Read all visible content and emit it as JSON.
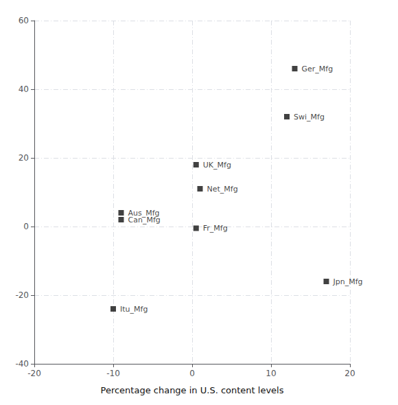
{
  "chart_data": {
    "type": "scatter",
    "xlabel": "Percentage change in U.S. content levels",
    "labels": [
      "Ger_Mfg",
      "Swi_Mfg",
      "UK_Mfg",
      "Net_Mfg",
      "Fr_Mfg",
      "Aus_Mfg",
      "Can_Mfg",
      "Jpn_Mfg",
      "Itu_Mfg"
    ],
    "x": [
      13.0,
      12.0,
      0.5,
      1.0,
      0.5,
      -9.0,
      -9.0,
      17.0,
      -10.0
    ],
    "values": [
      46.0,
      32.0,
      18.0,
      11.0,
      -0.5,
      4.0,
      2.0,
      -16.0,
      -24.0
    ],
    "xlim": [
      -20,
      20
    ],
    "xticks": [
      -20,
      -10,
      0,
      10,
      20
    ],
    "ylim": [
      -40,
      60
    ],
    "yticks": [
      -40,
      -20,
      0,
      20,
      40,
      60
    ],
    "color": "#111111",
    "marker": "square",
    "grid": true
  }
}
